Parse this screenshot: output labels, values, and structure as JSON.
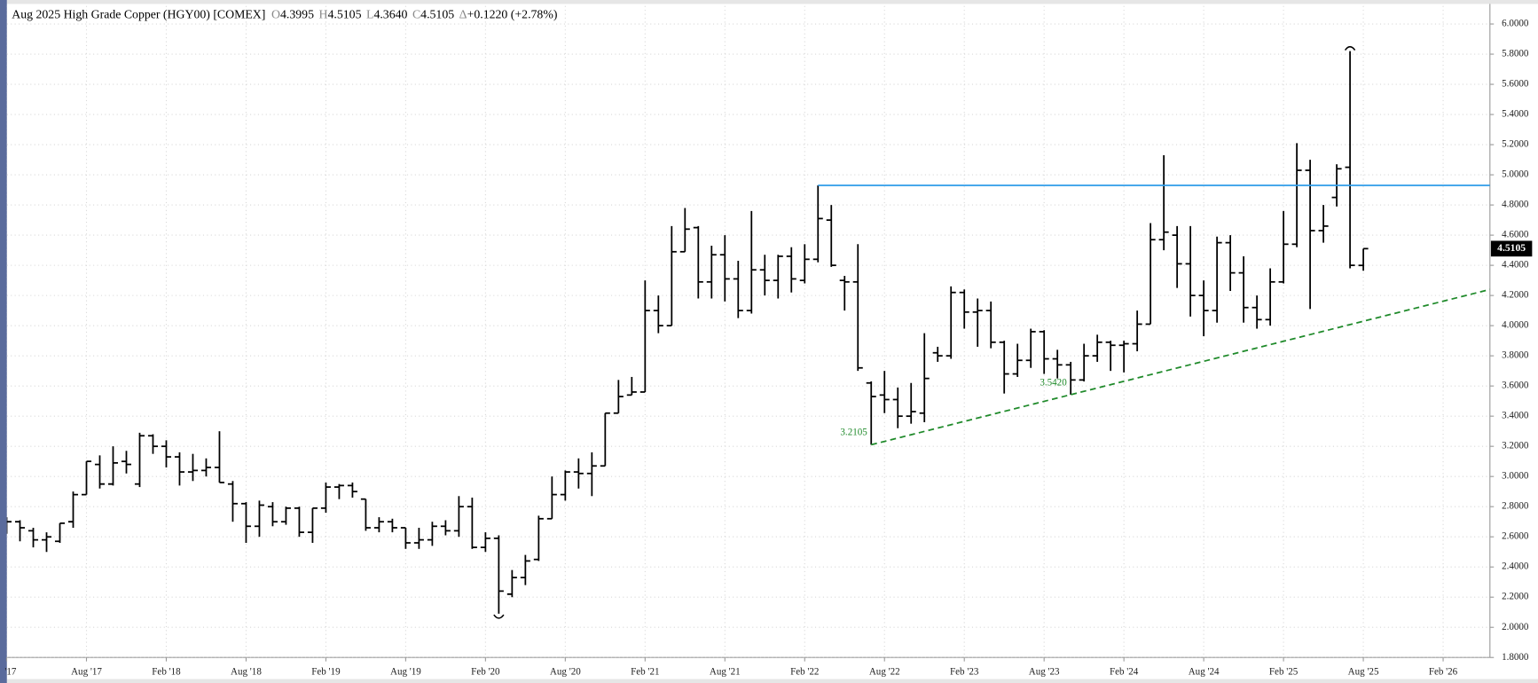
{
  "chart_data": {
    "type": "ohlc",
    "title": "Aug 2025 High Grade Copper (HGY00) [COMEX]",
    "quote": [
      {
        "key": "O",
        "value": "4.3995"
      },
      {
        "key": "H",
        "value": "4.5105"
      },
      {
        "key": "L",
        "value": "4.3640"
      },
      {
        "key": "C",
        "value": "4.5105"
      },
      {
        "key": "Δ",
        "value": "+0.1220 (+2.78%)"
      }
    ],
    "categories": [
      "'17",
      null,
      null,
      null,
      null,
      null,
      "Aug '17",
      null,
      null,
      null,
      null,
      null,
      "Feb '18",
      null,
      null,
      null,
      null,
      null,
      "Aug '18",
      null,
      null,
      null,
      null,
      null,
      "Feb '19",
      null,
      null,
      null,
      null,
      null,
      "Aug '19",
      null,
      null,
      null,
      null,
      null,
      "Feb '20",
      null,
      null,
      null,
      null,
      null,
      "Aug '20",
      null,
      null,
      null,
      null,
      null,
      "Feb '21",
      null,
      null,
      null,
      null,
      null,
      "Aug '21",
      null,
      null,
      null,
      null,
      null,
      "Feb '22",
      null,
      null,
      null,
      null,
      null,
      "Aug '22",
      null,
      null,
      null,
      null,
      null,
      "Feb '23",
      null,
      null,
      null,
      null,
      null,
      "Aug '23",
      null,
      null,
      null,
      null,
      null,
      "Feb '24",
      null,
      null,
      null,
      null,
      null,
      "Aug '24",
      null,
      null,
      null,
      null,
      null,
      "Feb '25",
      null,
      null,
      null,
      null,
      null,
      "Aug '25",
      null,
      null,
      null,
      null,
      null,
      "Feb '26",
      null,
      null,
      null
    ],
    "open": [
      2.7,
      2.7,
      2.64,
      2.58,
      2.57,
      2.7,
      2.88,
      3.08,
      2.95,
      3.1,
      2.95,
      3.27,
      3.2,
      3.13,
      3.03,
      3.04,
      3.06,
      2.95,
      2.82,
      2.67,
      2.8,
      2.7,
      2.79,
      2.63,
      2.79,
      2.93,
      2.94,
      2.85,
      2.66,
      2.7,
      2.66,
      2.56,
      2.58,
      2.67,
      2.64,
      2.8,
      2.53,
      2.59,
      2.22,
      2.33,
      2.45,
      2.72,
      2.88,
      3.03,
      3.02,
      3.07,
      3.42,
      3.54,
      3.56,
      4.1,
      4.0,
      4.49,
      4.65,
      4.29,
      4.47,
      4.31,
      4.1,
      4.37,
      4.3,
      4.46,
      4.3,
      4.44,
      4.7,
      4.3,
      4.29,
      3.62,
      3.54,
      3.51,
      3.4,
      3.42,
      3.82,
      3.8,
      4.22,
      4.09,
      4.1,
      3.89,
      3.68,
      3.77,
      3.96,
      3.78,
      3.74,
      3.64,
      3.8,
      3.89,
      3.87,
      3.88,
      4.01,
      4.57,
      4.6,
      4.41,
      4.2,
      4.1,
      4.55,
      4.35,
      4.12,
      4.04,
      4.29,
      4.54,
      5.03,
      4.63,
      4.85,
      5.05,
      4.3995,
      null,
      null,
      null,
      null,
      null,
      null,
      null,
      null,
      null
    ],
    "high": [
      2.73,
      2.71,
      2.66,
      2.63,
      2.69,
      2.9,
      3.1,
      3.14,
      3.2,
      3.17,
      3.29,
      3.28,
      3.24,
      3.16,
      3.15,
      3.12,
      3.3,
      2.97,
      2.83,
      2.84,
      2.83,
      2.8,
      2.8,
      2.79,
      2.96,
      2.95,
      2.96,
      2.85,
      2.73,
      2.72,
      2.66,
      2.66,
      2.7,
      2.71,
      2.87,
      2.86,
      2.63,
      2.61,
      2.38,
      2.48,
      2.74,
      3.0,
      3.04,
      3.12,
      3.16,
      3.42,
      3.64,
      3.66,
      4.3,
      4.2,
      4.66,
      4.78,
      4.66,
      4.53,
      4.6,
      4.43,
      4.76,
      4.47,
      4.47,
      4.52,
      4.54,
      4.93,
      4.8,
      4.33,
      4.54,
      3.63,
      3.7,
      3.59,
      3.62,
      3.95,
      3.86,
      4.26,
      4.24,
      4.18,
      4.16,
      3.9,
      3.88,
      3.98,
      3.97,
      3.84,
      3.76,
      3.88,
      3.94,
      3.9,
      3.9,
      4.1,
      4.68,
      5.13,
      4.66,
      4.66,
      4.3,
      4.59,
      4.6,
      4.46,
      4.2,
      4.38,
      4.76,
      5.21,
      5.1,
      4.8,
      5.07,
      5.82,
      4.5105,
      null,
      null,
      null,
      null,
      null,
      null,
      null,
      null,
      null
    ],
    "low": [
      2.62,
      2.57,
      2.53,
      2.5,
      2.56,
      2.66,
      2.88,
      2.92,
      2.94,
      3.02,
      2.93,
      3.15,
      3.06,
      2.94,
      2.97,
      3.0,
      2.96,
      2.7,
      2.56,
      2.6,
      2.67,
      2.68,
      2.6,
      2.56,
      2.76,
      2.85,
      2.86,
      2.64,
      2.63,
      2.63,
      2.52,
      2.52,
      2.54,
      2.61,
      2.6,
      2.52,
      2.5,
      2.09,
      2.2,
      2.28,
      2.44,
      2.72,
      2.84,
      2.92,
      2.87,
      3.07,
      3.42,
      3.54,
      3.56,
      3.95,
      4.0,
      4.49,
      4.18,
      4.18,
      4.16,
      4.05,
      4.08,
      4.2,
      4.18,
      4.22,
      4.28,
      4.42,
      4.39,
      4.1,
      3.7,
      3.2105,
      3.42,
      3.32,
      3.35,
      3.36,
      3.76,
      3.78,
      3.98,
      3.86,
      3.85,
      3.55,
      3.66,
      3.72,
      3.68,
      3.65,
      3.542,
      3.63,
      3.76,
      3.7,
      3.69,
      3.83,
      4.01,
      4.5,
      4.25,
      4.06,
      3.93,
      4.02,
      4.23,
      4.02,
      3.98,
      4.0,
      4.28,
      4.52,
      4.11,
      4.55,
      4.79,
      4.38,
      4.364,
      null,
      null,
      null,
      null,
      null,
      null,
      null,
      null,
      null
    ],
    "close": [
      2.7,
      2.66,
      2.58,
      2.6,
      2.69,
      2.88,
      3.1,
      2.95,
      3.09,
      3.08,
      3.27,
      3.2,
      3.13,
      3.03,
      3.04,
      3.06,
      2.96,
      2.82,
      2.67,
      2.81,
      2.7,
      2.79,
      2.63,
      2.79,
      2.93,
      2.94,
      2.9,
      2.66,
      2.7,
      2.66,
      2.56,
      2.58,
      2.67,
      2.64,
      2.8,
      2.53,
      2.59,
      2.24,
      2.33,
      2.44,
      2.72,
      2.88,
      3.03,
      3.02,
      3.07,
      3.42,
      3.53,
      3.56,
      4.1,
      4.0,
      4.49,
      4.64,
      4.29,
      4.47,
      4.31,
      4.1,
      4.37,
      4.3,
      4.46,
      4.31,
      4.44,
      4.71,
      4.4,
      4.29,
      3.72,
      3.53,
      3.51,
      3.4,
      3.43,
      3.65,
      3.8,
      4.22,
      4.09,
      4.1,
      3.89,
      3.68,
      3.77,
      3.96,
      3.78,
      3.74,
      3.64,
      3.8,
      3.89,
      3.87,
      3.88,
      4.01,
      4.57,
      4.62,
      4.41,
      4.2,
      4.1,
      4.55,
      4.35,
      4.12,
      4.04,
      4.29,
      4.54,
      5.03,
      4.63,
      4.66,
      5.04,
      4.4,
      4.5105,
      null,
      null,
      null,
      null,
      null,
      null,
      null,
      null,
      null
    ],
    "color": "#000000",
    "ylim": [
      1.8,
      6.12
    ],
    "yticks": [
      {
        "value": 1.8,
        "label": "1.8000"
      },
      {
        "value": 2.0,
        "label": "2.0000"
      },
      {
        "value": 2.2,
        "label": "2.2000"
      },
      {
        "value": 2.4,
        "label": "2.4000"
      },
      {
        "value": 2.6,
        "label": "2.6000"
      },
      {
        "value": 2.8,
        "label": "2.8000"
      },
      {
        "value": 3.0,
        "label": "3.0000"
      },
      {
        "value": 3.2,
        "label": "3.2000"
      },
      {
        "value": 3.4,
        "label": "3.4000"
      },
      {
        "value": 3.6,
        "label": "3.6000"
      },
      {
        "value": 3.8,
        "label": "3.8000"
      },
      {
        "value": 4.0,
        "label": "4.0000"
      },
      {
        "value": 4.2,
        "label": "4.2000"
      },
      {
        "value": 4.4,
        "label": "4.4000"
      },
      {
        "value": 4.6,
        "label": "4.6000"
      },
      {
        "value": 4.8,
        "label": "4.8000"
      },
      {
        "value": 5.0,
        "label": "5.0000"
      },
      {
        "value": 5.2,
        "label": "5.2000"
      },
      {
        "value": 5.4,
        "label": "5.4000"
      },
      {
        "value": 5.6,
        "label": "5.6000"
      },
      {
        "value": 5.8,
        "label": "5.8000"
      },
      {
        "value": 6.0,
        "label": "6.0000"
      }
    ],
    "grid": true,
    "last_price": 4.5105,
    "resistance": {
      "value": 4.93,
      "color": "#2e9be8"
    },
    "trendline": {
      "start": 3.2105,
      "end": 4.24,
      "color": "#1f8a2a"
    },
    "annotations": [
      {
        "value": 3.2105,
        "label": "3.2105"
      },
      {
        "value": 3.542,
        "label": "3.5420"
      }
    ]
  }
}
